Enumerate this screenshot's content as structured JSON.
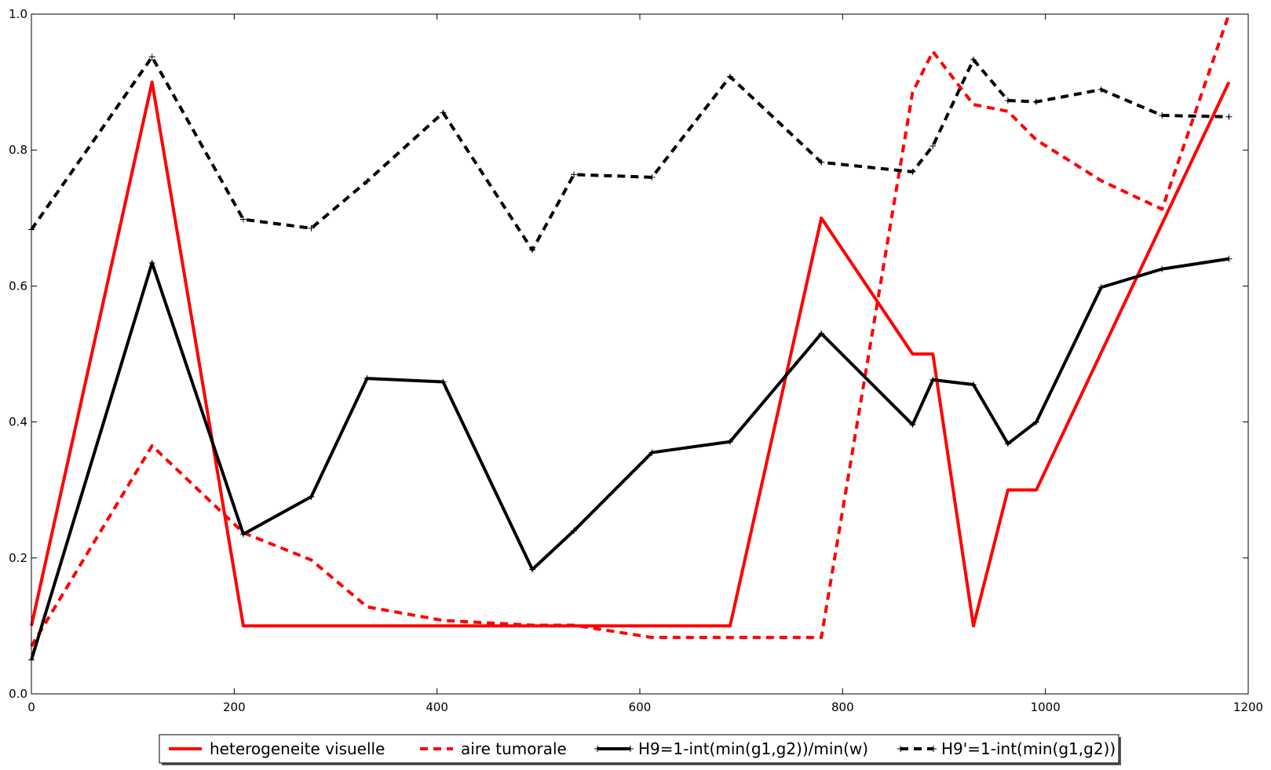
{
  "chart_data": {
    "type": "line",
    "title": "",
    "xlabel": "",
    "ylabel": "",
    "xlim": [
      0,
      1200
    ],
    "ylim": [
      0,
      1.0
    ],
    "xticks": [
      0,
      200,
      400,
      600,
      800,
      1000,
      1200
    ],
    "xtick_labels": [
      "0",
      "200",
      "400",
      "600",
      "800",
      "1000",
      "1200"
    ],
    "yticks": [
      0,
      0.2,
      0.4,
      0.6,
      0.8,
      1.0
    ],
    "ytick_labels": [
      "0.0",
      "0.2",
      "0.4",
      "0.6",
      "0.8",
      "1.0"
    ],
    "grid": false,
    "legend_position": "bottom-center",
    "series": [
      {
        "name": "heterogeneite visuelle",
        "color": "#ff0000",
        "style": "solid",
        "marker": "none",
        "x": [
          0,
          119,
          209,
          689,
          779,
          869,
          889,
          929,
          963,
          991,
          1181
        ],
        "y": [
          0.1,
          0.9,
          0.1,
          0.1,
          0.7,
          0.5,
          0.5,
          0.1,
          0.3,
          0.3,
          0.9
        ]
      },
      {
        "name": "aire tumorale",
        "color": "#ff0000",
        "style": "dashed",
        "marker": "none",
        "x": [
          0,
          119,
          209,
          276,
          331,
          406,
          494,
          535,
          612,
          689,
          779,
          869,
          889,
          929,
          963,
          991,
          1055,
          1115,
          1181
        ],
        "y": [
          0.07,
          0.365,
          0.237,
          0.197,
          0.128,
          0.108,
          0.101,
          0.101,
          0.083,
          0.083,
          0.083,
          0.885,
          0.945,
          0.867,
          0.857,
          0.815,
          0.755,
          0.713,
          1.0
        ]
      },
      {
        "name": "H9=1-int(min(g1,g2))/min(w)",
        "color": "#000000",
        "style": "solid",
        "marker": "plus",
        "x": [
          0,
          119,
          209,
          276,
          331,
          406,
          494,
          535,
          612,
          689,
          779,
          869,
          889,
          929,
          963,
          991,
          1055,
          1115,
          1181
        ],
        "y": [
          0.05,
          0.634,
          0.235,
          0.29,
          0.464,
          0.459,
          0.183,
          0.24,
          0.355,
          0.371,
          0.53,
          0.396,
          0.462,
          0.455,
          0.368,
          0.4,
          0.598,
          0.625,
          0.64
        ]
      },
      {
        "name": "H9'=1-int(min(g1,g2))",
        "color": "#000000",
        "style": "dashed",
        "marker": "plus",
        "x": [
          0,
          119,
          209,
          276,
          331,
          406,
          494,
          535,
          612,
          689,
          779,
          869,
          889,
          929,
          963,
          991,
          1055,
          1115,
          1181
        ],
        "y": [
          0.683,
          0.937,
          0.698,
          0.685,
          0.754,
          0.855,
          0.653,
          0.764,
          0.76,
          0.908,
          0.782,
          0.768,
          0.806,
          0.933,
          0.873,
          0.871,
          0.889,
          0.851,
          0.849
        ]
      }
    ]
  }
}
